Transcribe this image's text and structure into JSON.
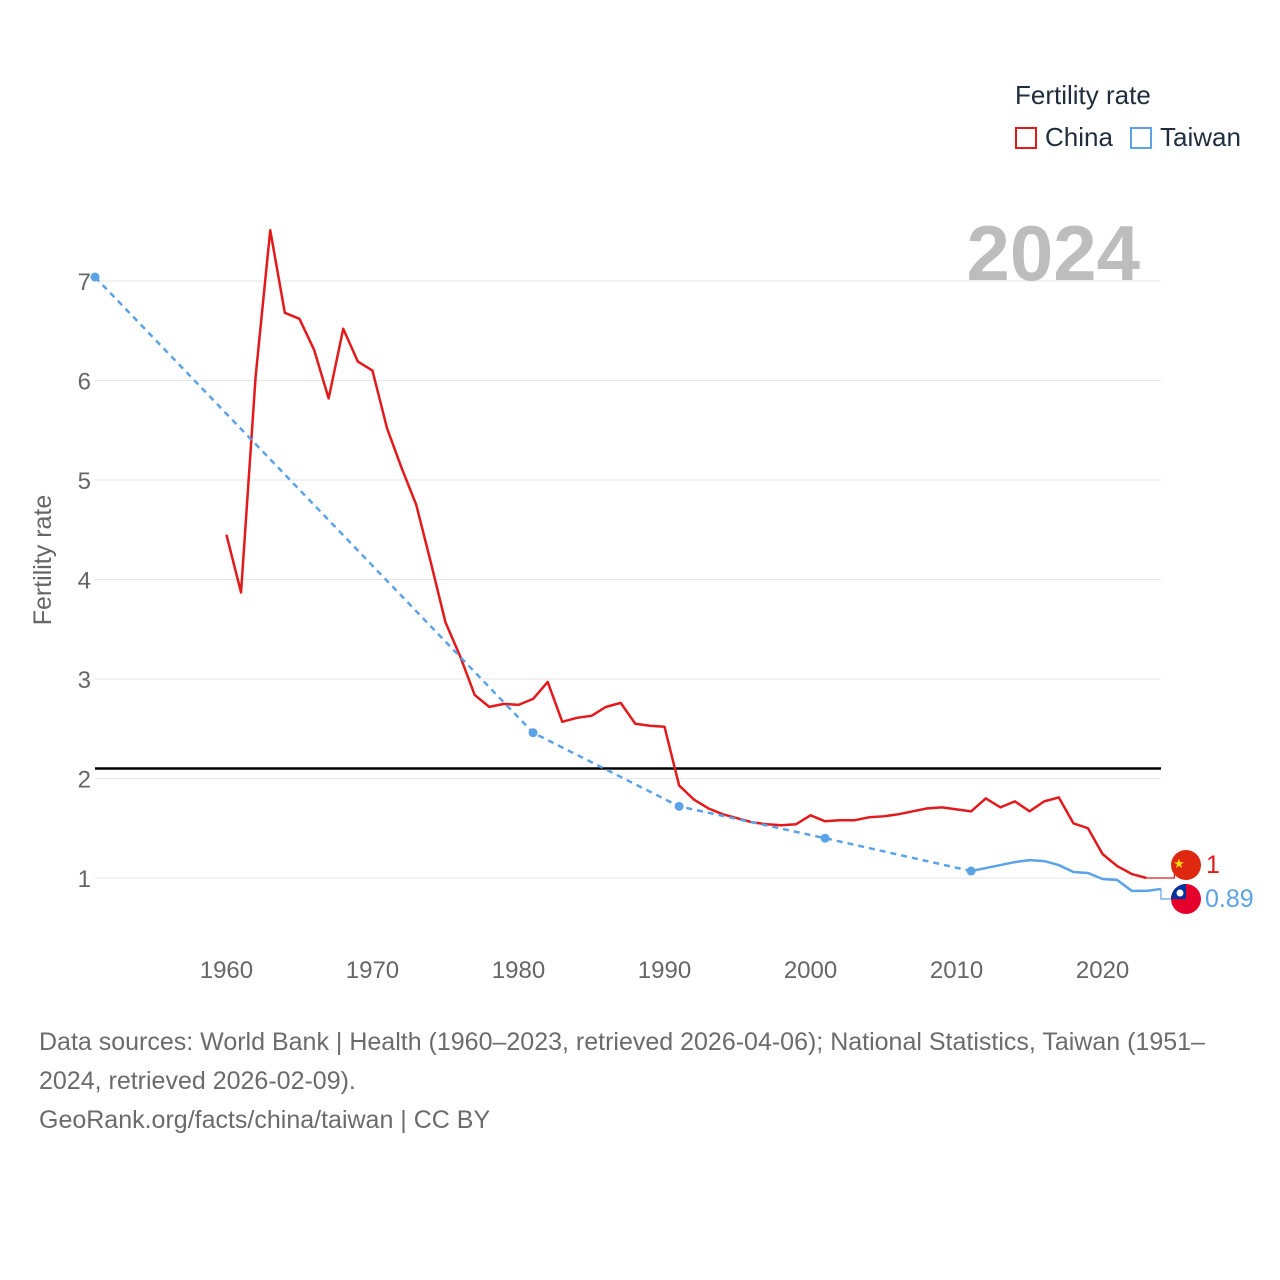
{
  "chart_data": {
    "type": "line",
    "title": "",
    "year_label": "2024",
    "xlabel": "",
    "ylabel": "Fertility rate",
    "xlim": [
      1951,
      2024
    ],
    "ylim": [
      0.4,
      7.5
    ],
    "x_ticks": [
      1960,
      1970,
      1980,
      1990,
      2000,
      2010,
      2020
    ],
    "y_ticks": [
      1,
      2,
      3,
      4,
      5,
      6,
      7
    ],
    "reference_line": {
      "y": 2.1,
      "color": "#000000"
    },
    "legend": {
      "title": "Fertility rate",
      "placement": "top-right"
    },
    "series": [
      {
        "name": "China",
        "color": "#e31a1c",
        "style": "solid",
        "end_label": "1",
        "x": [
          1960,
          1961,
          1962,
          1963,
          1964,
          1965,
          1966,
          1967,
          1968,
          1969,
          1970,
          1971,
          1972,
          1973,
          1974,
          1975,
          1976,
          1977,
          1978,
          1979,
          1980,
          1981,
          1982,
          1983,
          1984,
          1985,
          1986,
          1987,
          1988,
          1989,
          1990,
          1991,
          1992,
          1993,
          1994,
          1995,
          1996,
          1997,
          1998,
          1999,
          2000,
          2001,
          2002,
          2003,
          2004,
          2005,
          2006,
          2007,
          2008,
          2009,
          2010,
          2011,
          2012,
          2013,
          2014,
          2015,
          2016,
          2017,
          2018,
          2019,
          2020,
          2021,
          2022,
          2023
        ],
        "y": [
          4.45,
          3.87,
          6.04,
          7.51,
          6.68,
          6.62,
          6.31,
          5.82,
          6.52,
          6.19,
          6.1,
          5.52,
          5.12,
          4.75,
          4.17,
          3.57,
          3.23,
          2.84,
          2.72,
          2.75,
          2.74,
          2.8,
          2.97,
          2.57,
          2.61,
          2.63,
          2.72,
          2.76,
          2.55,
          2.53,
          2.52,
          1.93,
          1.79,
          1.7,
          1.64,
          1.6,
          1.56,
          1.54,
          1.53,
          1.54,
          1.63,
          1.57,
          1.58,
          1.58,
          1.61,
          1.62,
          1.64,
          1.67,
          1.7,
          1.71,
          1.69,
          1.67,
          1.8,
          1.71,
          1.77,
          1.67,
          1.77,
          1.81,
          1.55,
          1.5,
          1.24,
          1.12,
          1.04,
          1.0
        ]
      },
      {
        "name": "Taiwan",
        "color": "#5ba3e6",
        "style": "dashed-then-solid",
        "end_label": "0.89",
        "points": {
          "x": [
            1951,
            1981,
            1991,
            2001,
            2011
          ],
          "y": [
            7.04,
            2.46,
            1.72,
            1.4,
            1.07
          ]
        },
        "x": [
          2011,
          2012,
          2013,
          2014,
          2015,
          2016,
          2017,
          2018,
          2019,
          2020,
          2021,
          2022,
          2023,
          2024
        ],
        "y": [
          1.07,
          1.1,
          1.13,
          1.16,
          1.18,
          1.17,
          1.13,
          1.06,
          1.05,
          0.99,
          0.98,
          0.87,
          0.87,
          0.89
        ]
      }
    ]
  },
  "footer": {
    "sources": "Data sources: World Bank | Health (1960–2023, retrieved 2026-04-06); National Statistics, Taiwan (1951–2024, retrieved 2026-02-09).",
    "credit": "GeoRank.org/facts/china/taiwan | CC BY"
  }
}
